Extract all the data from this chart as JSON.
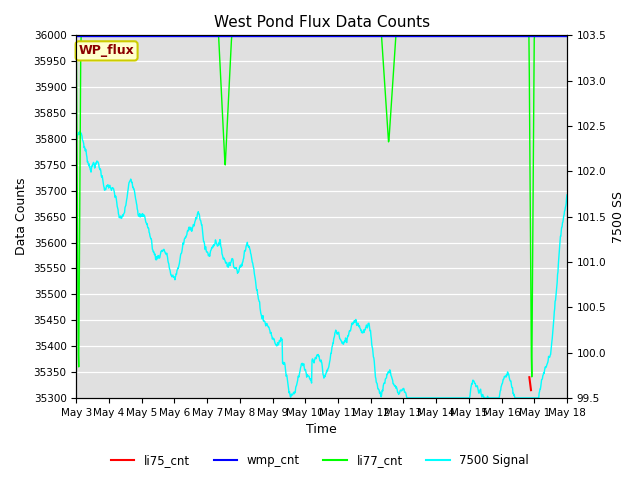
{
  "title": "West Pond Flux Data Counts",
  "xlabel": "Time",
  "ylabel_left": "Data Counts",
  "ylabel_right": "7500 SS",
  "ylim_left": [
    35300,
    36000
  ],
  "ylim_right": [
    99.5,
    103.5
  ],
  "background_color": "#e0e0e0",
  "grid_color": "white",
  "title_fontsize": 11,
  "label_fontsize": 9,
  "tick_fontsize": 7.5,
  "wp_flux_label": "WP_flux",
  "wp_flux_label_color": "#8b0000",
  "wp_flux_box_fill": "#ffffcc",
  "wp_flux_box_edge": "#cccc00",
  "legend_items": [
    {
      "label": "li75_cnt",
      "color": "red",
      "lw": 1.5
    },
    {
      "label": "wmp_cnt",
      "color": "blue",
      "lw": 1.5
    },
    {
      "label": "li77_cnt",
      "color": "lime",
      "lw": 1.5
    },
    {
      "label": "7500 Signal",
      "color": "cyan",
      "lw": 1.5
    }
  ],
  "xtick_labels": [
    "May 3",
    "May 4",
    "May 5",
    "May 6",
    "May 7",
    "May 8",
    "May 9",
    "May 10",
    "May 11",
    "May 12",
    "May 13",
    "May 14",
    "May 15",
    "May 16",
    "May 1",
    "May 18"
  ],
  "xtick_positions": [
    0,
    1,
    2,
    3,
    4,
    5,
    6,
    7,
    8,
    9,
    10,
    11,
    12,
    13,
    14,
    15
  ]
}
